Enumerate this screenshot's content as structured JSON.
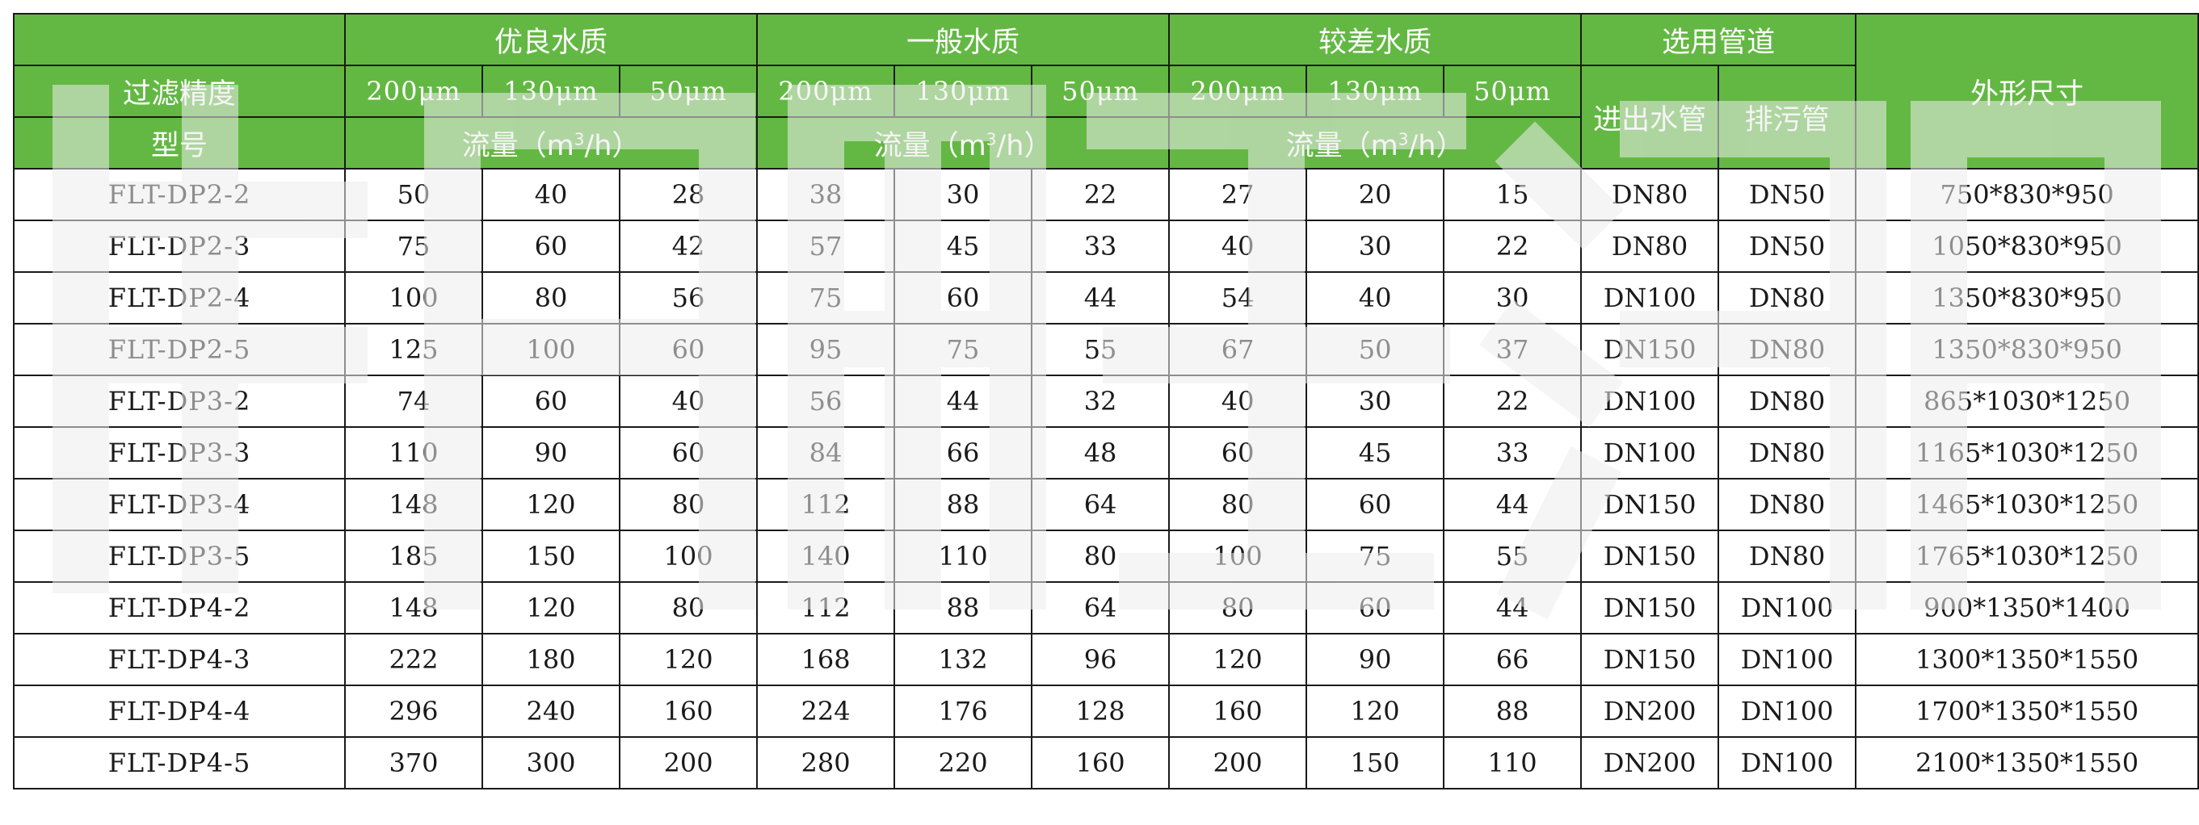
{
  "header": {
    "group_excellent": "优良水质",
    "group_general": "一般水质",
    "group_poor": "较差水质",
    "group_pipe": "选用管道",
    "label_precision": "过滤精度",
    "label_model": "型号",
    "label_dimensions": "外形尺寸",
    "label_inout_pipe": "进出水管",
    "label_drain_pipe": "排污管",
    "mesh": [
      "200μm",
      "130μm",
      "50μm",
      "200μm",
      "130μm",
      "50μm",
      "200μm",
      "130μm",
      "50μm"
    ],
    "flow_prefix": "流量（m",
    "flow_sup": "3",
    "flow_suffix": "/h）"
  },
  "rows": [
    {
      "model": "FLT-DP2-2",
      "v": [
        "50",
        "40",
        "28",
        "38",
        "30",
        "22",
        "27",
        "20",
        "15"
      ],
      "inout": "DN80",
      "drain": "DN50",
      "dim": "750*830*950"
    },
    {
      "model": "FLT-DP2-3",
      "v": [
        "75",
        "60",
        "42",
        "57",
        "45",
        "33",
        "40",
        "30",
        "22"
      ],
      "inout": "DN80",
      "drain": "DN50",
      "dim": "1050*830*950"
    },
    {
      "model": "FLT-DP2-4",
      "v": [
        "100",
        "80",
        "56",
        "75",
        "60",
        "44",
        "54",
        "40",
        "30"
      ],
      "inout": "DN100",
      "drain": "DN80",
      "dim": "1350*830*950"
    },
    {
      "model": "FLT-DP2-5",
      "v": [
        "125",
        "100",
        "60",
        "95",
        "75",
        "55",
        "67",
        "50",
        "37"
      ],
      "inout": "DN150",
      "drain": "DN80",
      "dim": "1350*830*950"
    },
    {
      "model": "FLT-DP3-2",
      "v": [
        "74",
        "60",
        "40",
        "56",
        "44",
        "32",
        "40",
        "30",
        "22"
      ],
      "inout": "DN100",
      "drain": "DN80",
      "dim": "865*1030*1250"
    },
    {
      "model": "FLT-DP3-3",
      "v": [
        "110",
        "90",
        "60",
        "84",
        "66",
        "48",
        "60",
        "45",
        "33"
      ],
      "inout": "DN100",
      "drain": "DN80",
      "dim": "1165*1030*1250"
    },
    {
      "model": "FLT-DP3-4",
      "v": [
        "148",
        "120",
        "80",
        "112",
        "88",
        "64",
        "80",
        "60",
        "44"
      ],
      "inout": "DN150",
      "drain": "DN80",
      "dim": "1465*1030*1250"
    },
    {
      "model": "FLT-DP3-5",
      "v": [
        "185",
        "150",
        "100",
        "140",
        "110",
        "80",
        "100",
        "75",
        "55"
      ],
      "inout": "DN150",
      "drain": "DN80",
      "dim": "1765*1030*1250"
    },
    {
      "model": "FLT-DP4-2",
      "v": [
        "148",
        "120",
        "80",
        "112",
        "88",
        "64",
        "80",
        "60",
        "44"
      ],
      "inout": "DN150",
      "drain": "DN100",
      "dim": "900*1350*1400"
    },
    {
      "model": "FLT-DP4-3",
      "v": [
        "222",
        "180",
        "120",
        "168",
        "132",
        "96",
        "120",
        "90",
        "66"
      ],
      "inout": "DN150",
      "drain": "DN100",
      "dim": "1300*1350*1550"
    },
    {
      "model": "FLT-DP4-4",
      "v": [
        "296",
        "240",
        "160",
        "224",
        "176",
        "128",
        "160",
        "120",
        "88"
      ],
      "inout": "DN200",
      "drain": "DN100",
      "dim": "1700*1350*1550"
    },
    {
      "model": "FLT-DP4-5",
      "v": [
        "370",
        "300",
        "200",
        "280",
        "220",
        "160",
        "200",
        "150",
        "110"
      ],
      "inout": "DN200",
      "drain": "DN100",
      "dim": "2100*1350*1550"
    }
  ],
  "colors": {
    "header_green": "#63b843",
    "header_text": "#ffffff",
    "border": "#1a1a1a",
    "body_text": "#1a1a1a"
  }
}
